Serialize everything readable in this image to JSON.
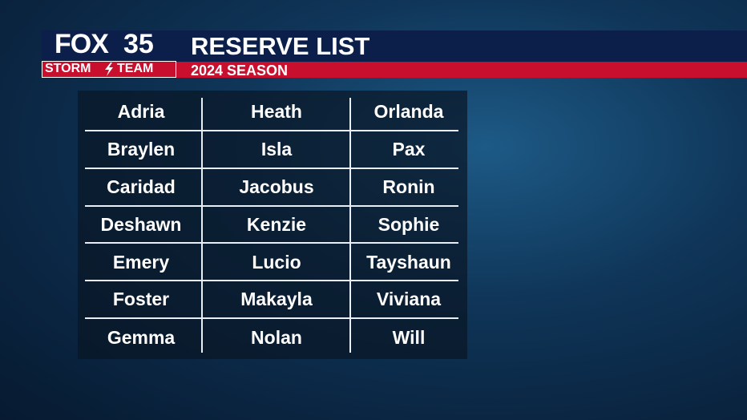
{
  "logo": {
    "brand": "FOX",
    "channel": "35",
    "storm": "STORM",
    "team": "TEAM"
  },
  "header": {
    "title": "RESERVE LIST",
    "subtitle": "2024 SEASON"
  },
  "table": {
    "rows": [
      [
        "Adria",
        "Heath",
        "Orlanda"
      ],
      [
        "Braylen",
        "Isla",
        "Pax"
      ],
      [
        "Caridad",
        "Jacobus",
        "Ronin"
      ],
      [
        "Deshawn",
        "Kenzie",
        "Sophie"
      ],
      [
        "Emery",
        "Lucio",
        "Tayshaun"
      ],
      [
        "Foster",
        "Makayla",
        "Viviana"
      ],
      [
        "Gemma",
        "Nolan",
        "Will"
      ]
    ]
  }
}
